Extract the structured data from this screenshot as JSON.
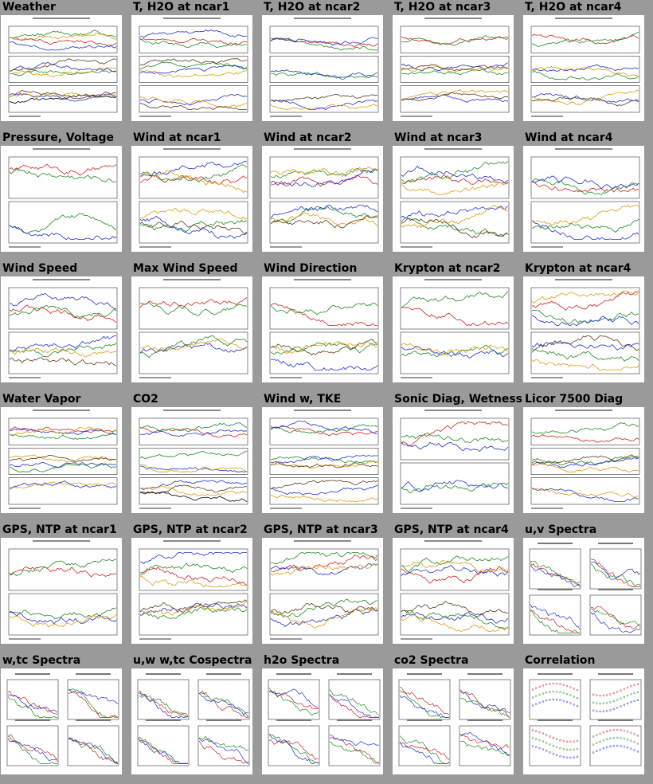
{
  "colors": {
    "page_background": "#9a9a9a",
    "thumbnail_background": "#ffffff",
    "series": [
      "#d22020",
      "#1f8a1f",
      "#2030d0",
      "#e09a10",
      "#5a3a1a",
      "#000000"
    ]
  },
  "thumbnails": [
    {
      "id": "weather",
      "label": "Weather",
      "panels": 3,
      "kind": "ts"
    },
    {
      "id": "t-h2o-ncar1",
      "label": "T, H2O at ncar1",
      "panels": 3,
      "kind": "ts"
    },
    {
      "id": "t-h2o-ncar2",
      "label": "T, H2O at ncar2",
      "panels": 3,
      "kind": "ts"
    },
    {
      "id": "t-h2o-ncar3",
      "label": "T, H2O at ncar3",
      "panels": 3,
      "kind": "ts"
    },
    {
      "id": "t-h2o-ncar4",
      "label": "T, H2O at ncar4",
      "panels": 3,
      "kind": "ts"
    },
    {
      "id": "pressure-voltage",
      "label": "Pressure, Voltage",
      "panels": 2,
      "kind": "ts"
    },
    {
      "id": "wind-ncar1",
      "label": "Wind at ncar1",
      "panels": 2,
      "kind": "ts"
    },
    {
      "id": "wind-ncar2",
      "label": "Wind at ncar2",
      "panels": 2,
      "kind": "ts"
    },
    {
      "id": "wind-ncar3",
      "label": "Wind at ncar3",
      "panels": 2,
      "kind": "ts"
    },
    {
      "id": "wind-ncar4",
      "label": "Wind at ncar4",
      "panels": 2,
      "kind": "ts"
    },
    {
      "id": "wind-speed",
      "label": "Wind Speed",
      "panels": 2,
      "kind": "ts"
    },
    {
      "id": "max-wind-speed",
      "label": "Max Wind Speed",
      "panels": 2,
      "kind": "ts"
    },
    {
      "id": "wind-direction",
      "label": "Wind Direction",
      "panels": 2,
      "kind": "ts"
    },
    {
      "id": "krypton-ncar2",
      "label": "Krypton at ncar2",
      "panels": 2,
      "kind": "ts"
    },
    {
      "id": "krypton-ncar4",
      "label": "Krypton at ncar4",
      "panels": 2,
      "kind": "ts"
    },
    {
      "id": "water-vapor",
      "label": "Water Vapor",
      "panels": 3,
      "kind": "ts"
    },
    {
      "id": "co2",
      "label": "CO2",
      "panels": 3,
      "kind": "ts"
    },
    {
      "id": "wind-w-tke",
      "label": "Wind w, TKE",
      "panels": 3,
      "kind": "ts"
    },
    {
      "id": "sonic-diag-wetness",
      "label": "Sonic Diag, Wetness",
      "panels": 2,
      "kind": "ts"
    },
    {
      "id": "licor-7500-diag",
      "label": "Licor 7500 Diag",
      "panels": 3,
      "kind": "ts"
    },
    {
      "id": "gps-ntp-ncar1",
      "label": "GPS, NTP at ncar1",
      "panels": 2,
      "kind": "ts"
    },
    {
      "id": "gps-ntp-ncar2",
      "label": "GPS, NTP at ncar2",
      "panels": 2,
      "kind": "ts"
    },
    {
      "id": "gps-ntp-ncar3",
      "label": "GPS, NTP at ncar3",
      "panels": 2,
      "kind": "ts"
    },
    {
      "id": "gps-ntp-ncar4",
      "label": "GPS, NTP at ncar4",
      "panels": 2,
      "kind": "ts"
    },
    {
      "id": "uv-spectra",
      "label": "u,v Spectra",
      "panels": 4,
      "kind": "spec"
    },
    {
      "id": "wtc-spectra",
      "label": "w,tc Spectra",
      "panels": 4,
      "kind": "spec"
    },
    {
      "id": "uw-wtc-cospectra",
      "label": "u,w w,tc Cospectra",
      "panels": 4,
      "kind": "spec"
    },
    {
      "id": "h2o-spectra",
      "label": "h2o Spectra",
      "panels": 4,
      "kind": "spec"
    },
    {
      "id": "co2-spectra",
      "label": "co2 Spectra",
      "panels": 4,
      "kind": "spec"
    },
    {
      "id": "correlation",
      "label": "Correlation",
      "panels": 4,
      "kind": "corr"
    }
  ]
}
